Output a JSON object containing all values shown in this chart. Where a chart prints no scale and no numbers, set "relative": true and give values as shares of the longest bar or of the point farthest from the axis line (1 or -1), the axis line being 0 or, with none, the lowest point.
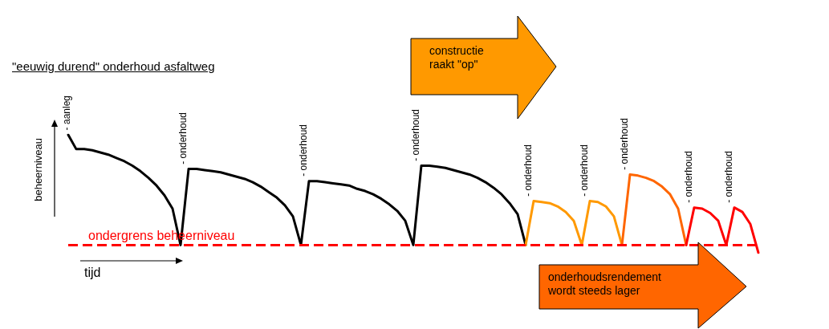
{
  "chart_data": {
    "type": "line",
    "relative": true,
    "title": "\"eeuwig durend\" onderhoud asfaltweg",
    "xlabel": "tijd",
    "ylabel": "beheerniveau",
    "categories": [
      null,
      null,
      null,
      null,
      null,
      null,
      null,
      null,
      null,
      null,
      null,
      null,
      null,
      null,
      null,
      null,
      null,
      null,
      null,
      null,
      null,
      null,
      null,
      null,
      null,
      null,
      null,
      null,
      null,
      null,
      null,
      null,
      null,
      null,
      null,
      null,
      null,
      null,
      null,
      null,
      null,
      null,
      null,
      null,
      null,
      null,
      null,
      null,
      null,
      null,
      null,
      null,
      null,
      null,
      null,
      null,
      null,
      null,
      null,
      null,
      null,
      null,
      null,
      null,
      null,
      null,
      null,
      null,
      null,
      null,
      null,
      null,
      null,
      null,
      null,
      null,
      null,
      null,
      null,
      null,
      null,
      null,
      null,
      null,
      null,
      null,
      null
    ],
    "series": [
      {
        "color": "#000000",
        "values": [
          1.0,
          0.87,
          0.87,
          0.86,
          0.84,
          0.82,
          0.79,
          0.76,
          0.72,
          0.67,
          0.61,
          0.54,
          0.45,
          0.33,
          0,
          0.69,
          0.69,
          0.68,
          0.67,
          0.66,
          0.64,
          0.62,
          0.6,
          0.57,
          0.53,
          0.48,
          0.43,
          0.36,
          0.26,
          0,
          0.58,
          0.58,
          0.57,
          0.56,
          0.55,
          0.54,
          0.51,
          0.49,
          0.46,
          0.42,
          0.37,
          0.31,
          0.22,
          0,
          0.72,
          0.72,
          0.71,
          0.7,
          0.68,
          0.66,
          0.64,
          0.61,
          0.57,
          0.52,
          0.46,
          0.38,
          0.28,
          0,
          null,
          null,
          null,
          null,
          null,
          null,
          null,
          null,
          null,
          null,
          null,
          null,
          null,
          null,
          null,
          null,
          null,
          null,
          null,
          null,
          null,
          null,
          null,
          null,
          null,
          null,
          null,
          null,
          null
        ]
      },
      {
        "color": "#ff9900",
        "values": [
          null,
          null,
          null,
          null,
          null,
          null,
          null,
          null,
          null,
          null,
          null,
          null,
          null,
          null,
          null,
          null,
          null,
          null,
          null,
          null,
          null,
          null,
          null,
          null,
          null,
          null,
          null,
          null,
          null,
          null,
          null,
          null,
          null,
          null,
          null,
          null,
          null,
          null,
          null,
          null,
          null,
          null,
          null,
          null,
          null,
          null,
          null,
          null,
          null,
          null,
          null,
          null,
          null,
          null,
          null,
          null,
          null,
          0,
          0.4,
          0.39,
          0.38,
          0.35,
          0.3,
          0.22,
          0,
          0.4,
          0.39,
          0.35,
          0.26,
          0,
          null,
          null,
          null,
          null,
          null,
          null,
          null,
          null,
          null,
          null,
          null,
          null,
          null,
          null,
          null,
          null,
          null
        ]
      },
      {
        "color": "#ff6600",
        "values": [
          null,
          null,
          null,
          null,
          null,
          null,
          null,
          null,
          null,
          null,
          null,
          null,
          null,
          null,
          null,
          null,
          null,
          null,
          null,
          null,
          null,
          null,
          null,
          null,
          null,
          null,
          null,
          null,
          null,
          null,
          null,
          null,
          null,
          null,
          null,
          null,
          null,
          null,
          null,
          null,
          null,
          null,
          null,
          null,
          null,
          null,
          null,
          null,
          null,
          null,
          null,
          null,
          null,
          null,
          null,
          null,
          null,
          null,
          null,
          null,
          null,
          null,
          null,
          null,
          null,
          null,
          null,
          null,
          null,
          0,
          0.64,
          0.63,
          0.61,
          0.58,
          0.53,
          0.46,
          0.33,
          0,
          null,
          null,
          null,
          null,
          null,
          null,
          null,
          null,
          null
        ]
      },
      {
        "color": "#ff0000",
        "values": [
          null,
          null,
          null,
          null,
          null,
          null,
          null,
          null,
          null,
          null,
          null,
          null,
          null,
          null,
          null,
          null,
          null,
          null,
          null,
          null,
          null,
          null,
          null,
          null,
          null,
          null,
          null,
          null,
          null,
          null,
          null,
          null,
          null,
          null,
          null,
          null,
          null,
          null,
          null,
          null,
          null,
          null,
          null,
          null,
          null,
          null,
          null,
          null,
          null,
          null,
          null,
          null,
          null,
          null,
          null,
          null,
          null,
          null,
          null,
          null,
          null,
          null,
          null,
          null,
          null,
          null,
          null,
          null,
          null,
          null,
          null,
          null,
          null,
          null,
          null,
          null,
          null,
          0,
          0.34,
          0.33,
          0.29,
          0.22,
          0,
          0.34,
          0.3,
          0.19,
          -0.07
        ]
      }
    ],
    "ref_lines": [
      {
        "axis": "y",
        "value": 0,
        "label": "ondergrens beheerniveau",
        "color": "#ff0000",
        "line_style": "dashed"
      }
    ],
    "annotations": [
      "- aanleg",
      "- onderhoud",
      "- onderhoud",
      "- onderhoud",
      "- onderhoud",
      "- onderhoud",
      "- onderhoud",
      "- onderhoud",
      "- onderhoud",
      "constructie raakt \"op\"",
      "onderhoudsrendement wordt steeds lager"
    ]
  }
}
